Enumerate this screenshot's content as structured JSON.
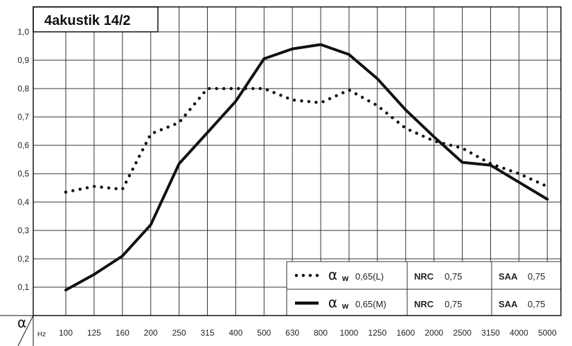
{
  "chart_data": {
    "type": "line",
    "title": "4akustik 14/2",
    "ylabel": "α",
    "xlabel": "Hz",
    "categories": [
      "100",
      "125",
      "160",
      "200",
      "250",
      "315",
      "400",
      "500",
      "630",
      "800",
      "1000",
      "1250",
      "1600",
      "2000",
      "2500",
      "3150",
      "4000",
      "5000"
    ],
    "yticks": [
      "0,1",
      "0,2",
      "0,3",
      "0,4",
      "0,5",
      "0,6",
      "0,7",
      "0,8",
      "0,9",
      "1,0"
    ],
    "ylim": [
      0,
      1.0
    ],
    "grid": true,
    "legend_position": "bottom-right",
    "series": [
      {
        "style": "dotted",
        "values": [
          0.435,
          0.455,
          0.445,
          0.64,
          0.68,
          0.8,
          0.8,
          0.8,
          0.76,
          0.75,
          0.795,
          0.74,
          0.66,
          0.615,
          0.59,
          0.535,
          0.5,
          0.455
        ],
        "legend": {
          "symbol": "α",
          "sub": "w",
          "aw": "0,65(L)",
          "nrc_label": "NRC",
          "nrc": "0,75",
          "saa_label": "SAA",
          "saa": "0,75"
        }
      },
      {
        "style": "solid",
        "values": [
          0.09,
          0.145,
          0.21,
          0.32,
          0.535,
          0.645,
          0.755,
          0.905,
          0.94,
          0.955,
          0.92,
          0.835,
          0.725,
          0.63,
          0.54,
          0.53,
          0.47,
          0.41
        ],
        "legend": {
          "symbol": "α",
          "sub": "w",
          "aw": "0,65(M)",
          "nrc_label": "NRC",
          "nrc": "0,75",
          "saa_label": "SAA",
          "saa": "0,75"
        }
      }
    ],
    "colors": {
      "line": "#111111",
      "grid": "#333333",
      "background": "#ffffff"
    }
  }
}
